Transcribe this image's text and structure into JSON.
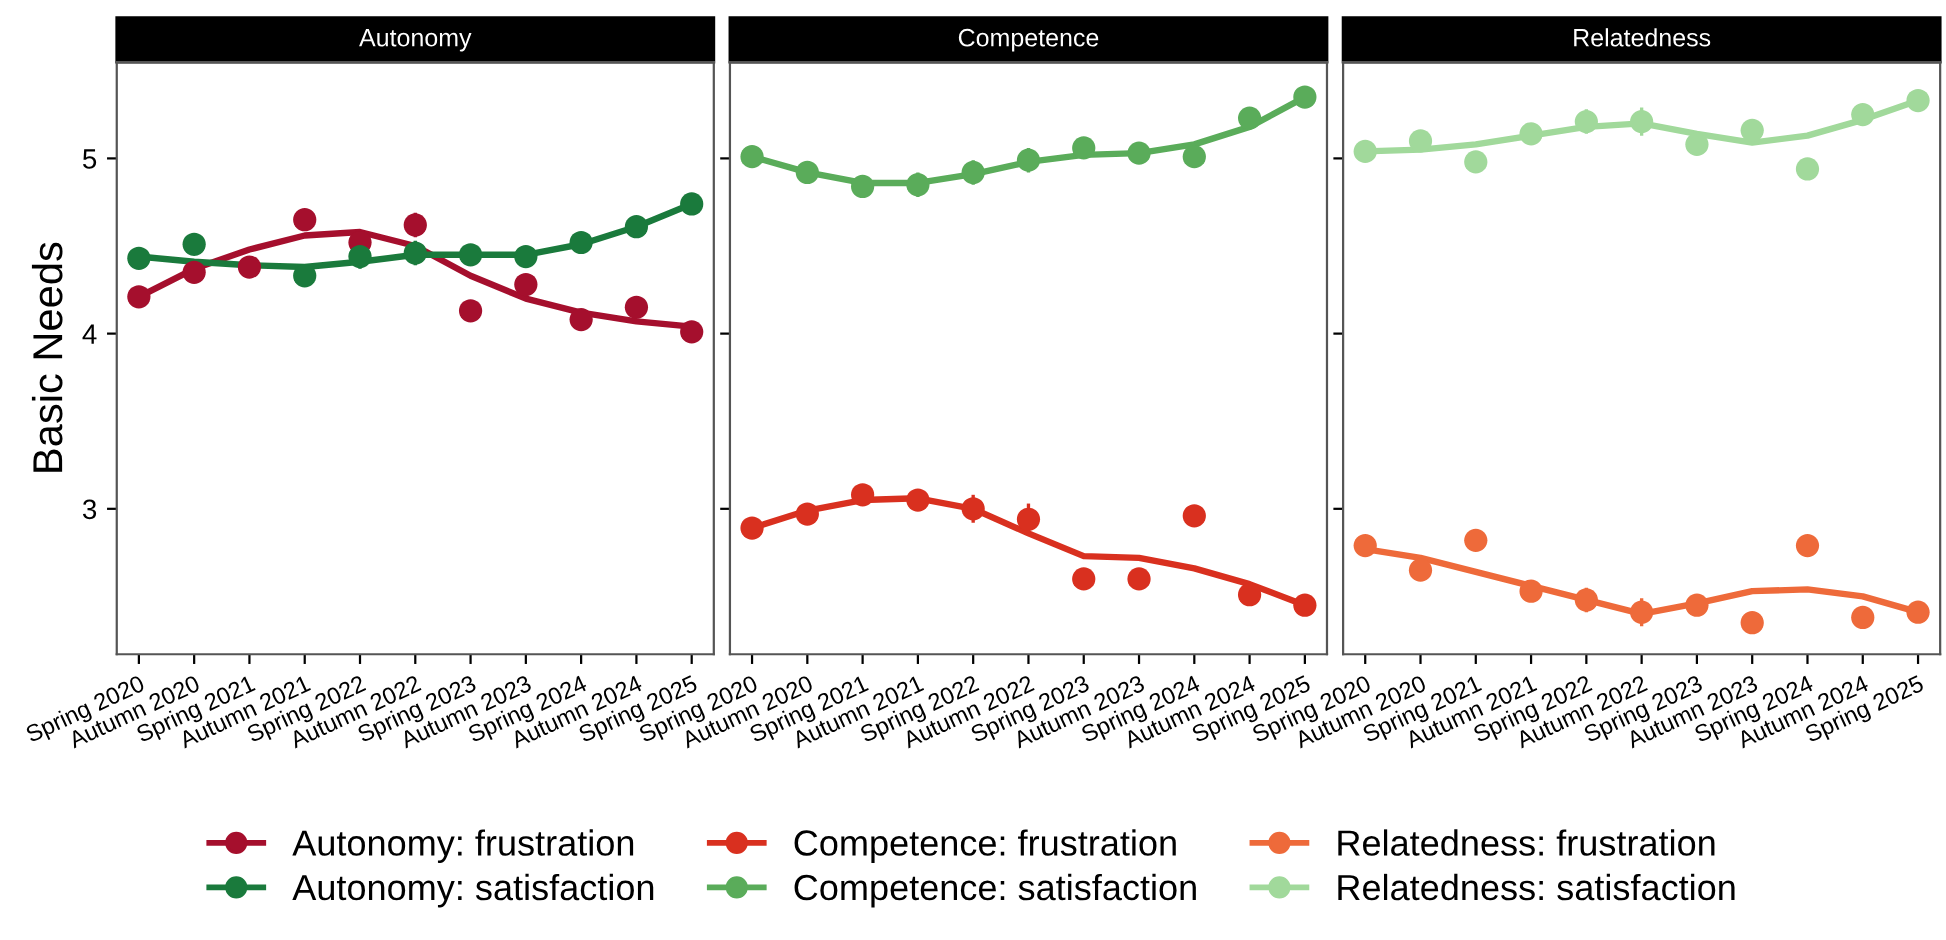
{
  "chart_data": [
    {
      "title": "Autonomy",
      "type": "scatter",
      "ylabel": "Basic Needs",
      "categories": [
        "Spring 2020",
        "Autumn 2020",
        "Spring 2021",
        "Autumn 2021",
        "Spring 2022",
        "Autumn 2022",
        "Spring 2023",
        "Autumn 2023",
        "Spring 2024",
        "Autumn 2024",
        "Spring 2025"
      ],
      "ylim": [
        2.17,
        5.55
      ],
      "yticks": [
        3,
        4,
        5
      ],
      "legend": "bottom",
      "grid": false,
      "series": [
        {
          "name": "Autonomy: frustration",
          "marker": "circle",
          "color": "#a50f2d",
          "values": [
            4.21,
            4.35,
            4.38,
            4.65,
            4.52,
            4.62,
            4.13,
            4.28,
            4.08,
            4.15,
            4.01
          ],
          "errors": [
            0.05,
            0.05,
            0.05,
            0.06,
            0.06,
            0.07,
            0.05,
            0.05,
            0.04,
            0.05,
            0.04
          ]
        },
        {
          "name": "Autonomy: satisfaction",
          "marker": "circle",
          "color": "#1a7a3c",
          "values": [
            4.43,
            4.51,
            null,
            4.33,
            4.44,
            4.46,
            4.45,
            4.44,
            4.52,
            4.61,
            4.74
          ],
          "errors": [
            0.05,
            0.05,
            null,
            0.05,
            0.07,
            0.07,
            0.04,
            0.05,
            0.03,
            0.03,
            0.03
          ]
        },
        {
          "type": "line",
          "color": "#a50f2d",
          "values": [
            4.21,
            4.37,
            4.48,
            4.56,
            4.58,
            4.5,
            4.33,
            4.2,
            4.12,
            4.07,
            4.04
          ]
        },
        {
          "type": "line",
          "color": "#1a7a3c",
          "values": [
            4.44,
            4.41,
            4.39,
            4.38,
            4.41,
            4.45,
            4.45,
            4.45,
            4.51,
            4.61,
            4.74
          ]
        }
      ]
    },
    {
      "title": "Competence",
      "type": "scatter",
      "categories": [
        "Spring 2020",
        "Autumn 2020",
        "Spring 2021",
        "Autumn 2021",
        "Spring 2022",
        "Autumn 2022",
        "Spring 2023",
        "Autumn 2023",
        "Spring 2024",
        "Autumn 2024",
        "Spring 2025"
      ],
      "ylim": [
        2.17,
        5.55
      ],
      "yticks": [
        3,
        4,
        5
      ],
      "tick_labels": "x",
      "legend": "bottom",
      "grid": false,
      "series": [
        {
          "name": "Competence: frustration",
          "marker": "circle",
          "color": "#d9301f",
          "values": [
            2.89,
            2.97,
            3.08,
            3.05,
            3.0,
            2.94,
            2.6,
            2.6,
            2.96,
            2.51,
            2.45
          ],
          "errors": [
            0.05,
            0.05,
            0.05,
            0.06,
            0.08,
            0.09,
            0.05,
            0.05,
            0.03,
            0.04,
            0.03
          ]
        },
        {
          "name": "Competence: satisfaction",
          "marker": "circle",
          "color": "#5aac5a",
          "values": [
            5.01,
            4.92,
            4.84,
            4.85,
            4.92,
            4.99,
            5.06,
            5.03,
            5.01,
            5.23,
            5.35
          ],
          "errors": [
            0.05,
            0.04,
            0.05,
            0.07,
            0.07,
            0.07,
            0.04,
            0.05,
            0.03,
            0.03,
            0.03
          ]
        },
        {
          "type": "line",
          "color": "#d9301f",
          "values": [
            2.89,
            2.99,
            3.05,
            3.06,
            3.0,
            2.86,
            2.73,
            2.72,
            2.66,
            2.57,
            2.45
          ]
        },
        {
          "type": "line",
          "color": "#5aac5a",
          "values": [
            5.01,
            4.92,
            4.86,
            4.86,
            4.91,
            4.98,
            5.02,
            5.03,
            5.08,
            5.18,
            5.35
          ]
        }
      ]
    },
    {
      "title": "Relatedness",
      "type": "scatter",
      "categories": [
        "Spring 2020",
        "Autumn 2020",
        "Spring 2021",
        "Autumn 2021",
        "Spring 2022",
        "Autumn 2022",
        "Spring 2023",
        "Autumn 2023",
        "Spring 2024",
        "Autumn 2024",
        "Spring 2025"
      ],
      "ylim": [
        2.17,
        5.55
      ],
      "yticks": [
        3,
        4,
        5
      ],
      "tick_labels": "x",
      "legend": "bottom",
      "grid": false,
      "series": [
        {
          "name": "Relatedness: frustration",
          "marker": "circle",
          "color": "#ee6a3a",
          "values": [
            2.79,
            2.65,
            2.82,
            2.53,
            2.48,
            2.41,
            2.45,
            2.35,
            2.79,
            2.38,
            2.41
          ],
          "errors": [
            0.05,
            0.05,
            0.05,
            0.06,
            0.07,
            0.08,
            0.04,
            0.04,
            0.03,
            0.03,
            0.03
          ]
        },
        {
          "name": "Relatedness: satisfaction",
          "marker": "circle",
          "color": "#a1d99b",
          "values": [
            5.04,
            5.1,
            4.98,
            5.14,
            5.21,
            5.21,
            5.08,
            5.16,
            4.94,
            5.25,
            5.33
          ],
          "errors": [
            0.05,
            0.04,
            0.05,
            0.06,
            0.07,
            0.08,
            0.04,
            0.06,
            0.03,
            0.03,
            0.03
          ]
        },
        {
          "type": "line",
          "color": "#ee6a3a",
          "values": [
            2.77,
            2.72,
            2.64,
            2.56,
            2.48,
            2.4,
            2.46,
            2.53,
            2.54,
            2.5,
            2.41
          ]
        },
        {
          "type": "line",
          "color": "#a1d99b",
          "values": [
            5.04,
            5.05,
            5.08,
            5.13,
            5.18,
            5.2,
            5.14,
            5.09,
            5.13,
            5.22,
            5.33
          ]
        }
      ]
    }
  ]
}
